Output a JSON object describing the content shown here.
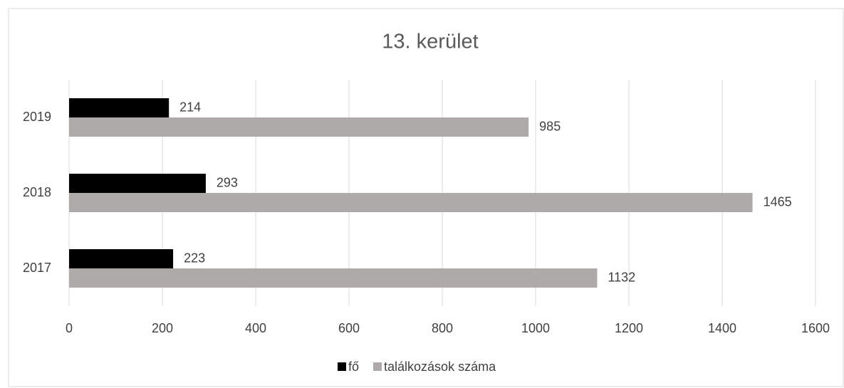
{
  "chart_data": {
    "type": "bar",
    "orientation": "horizontal",
    "title": "13. kerület",
    "categories": [
      "2017",
      "2018",
      "2019"
    ],
    "series": [
      {
        "name": "fő",
        "color": "#000000",
        "values": [
          223,
          293,
          214
        ]
      },
      {
        "name": "találkozások száma",
        "color": "#aeaaaa",
        "values": [
          1132,
          1465,
          985
        ]
      }
    ],
    "xlim": [
      0,
      1600
    ],
    "xticks": [
      0,
      200,
      400,
      600,
      800,
      1000,
      1200,
      1400,
      1600
    ],
    "grid": true,
    "legend": "bottom"
  }
}
